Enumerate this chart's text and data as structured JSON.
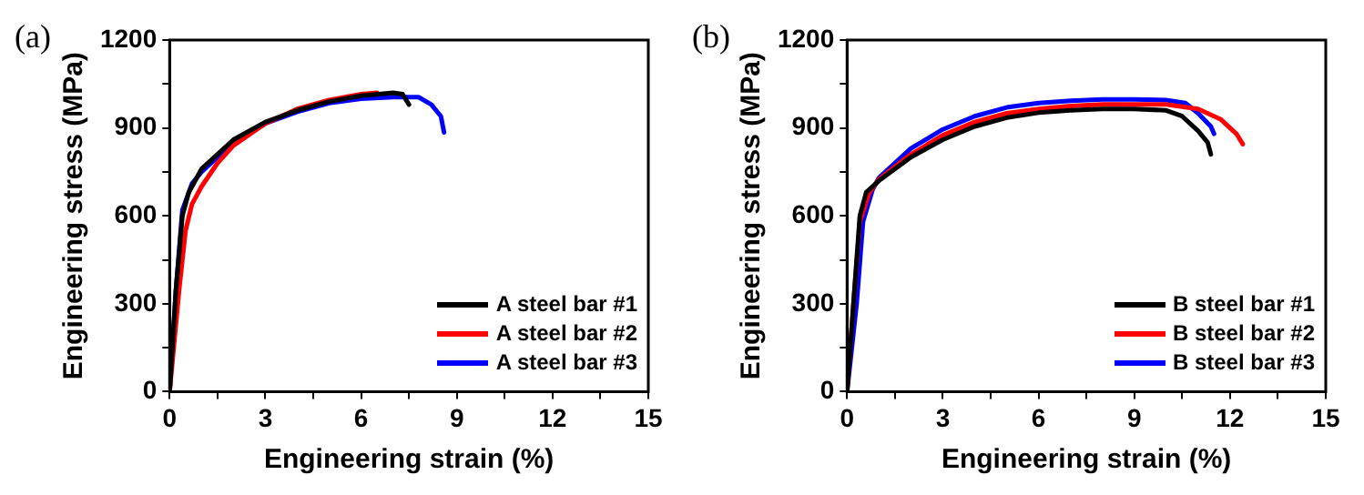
{
  "chart_data": [
    {
      "type": "line",
      "annotations": [
        "(a)"
      ],
      "xlabel": "Engineering strain (%)",
      "ylabel": "Engineering stress (MPa)",
      "xlim": [
        0,
        15
      ],
      "ylim": [
        0,
        1200
      ],
      "xticks": [
        0,
        {
          "value": 1.5,
          "label": null
        },
        3,
        {
          "value": 4.5,
          "label": null
        },
        6,
        {
          "value": 7.5,
          "label": null
        },
        9,
        {
          "value": 10.5,
          "label": null
        },
        12,
        {
          "value": 13.5,
          "label": null
        },
        15
      ],
      "yticks": [
        0,
        {
          "value": 150,
          "label": null
        },
        300,
        {
          "value": 450,
          "label": null
        },
        600,
        {
          "value": 750,
          "label": null
        },
        900,
        {
          "value": 1050,
          "label": null
        },
        1200
      ],
      "grid": false,
      "legend": "bottom right",
      "marker": "none",
      "line_style": "solid",
      "series": [
        {
          "name": "A steel bar #1",
          "color": "#000000",
          "x": [
            0,
            0.2,
            0.4,
            0.6,
            1,
            2,
            3,
            4,
            5,
            6,
            7,
            7.3,
            7.5
          ],
          "values": [
            0,
            350,
            600,
            680,
            760,
            860,
            920,
            960,
            990,
            1010,
            1020,
            1015,
            980
          ]
        },
        {
          "name": "A steel bar #2",
          "color": "#ff0000",
          "x": [
            0,
            0.3,
            0.5,
            0.7,
            1,
            1.5,
            2,
            3,
            4,
            5,
            6,
            6.5
          ],
          "values": [
            0,
            350,
            550,
            640,
            700,
            780,
            840,
            915,
            965,
            995,
            1015,
            1020
          ]
        },
        {
          "name": "A steel bar #3",
          "color": "#0000ff",
          "x": [
            0,
            0.2,
            0.4,
            0.7,
            1,
            2,
            3,
            4,
            5,
            6,
            7,
            7.8,
            8.2,
            8.5,
            8.6
          ],
          "values": [
            0,
            350,
            620,
            710,
            750,
            850,
            915,
            955,
            985,
            1000,
            1005,
            1005,
            980,
            940,
            885
          ]
        }
      ]
    },
    {
      "type": "line",
      "annotations": [
        "(b)"
      ],
      "xlabel": "Engineering strain (%)",
      "ylabel": "Engineering stress (MPa)",
      "xlim": [
        0,
        15
      ],
      "ylim": [
        0,
        1200
      ],
      "xticks": [
        0,
        {
          "value": 1.5,
          "label": null
        },
        3,
        {
          "value": 4.5,
          "label": null
        },
        6,
        {
          "value": 7.5,
          "label": null
        },
        9,
        {
          "value": 10.5,
          "label": null
        },
        12,
        {
          "value": 13.5,
          "label": null
        },
        15
      ],
      "yticks": [
        0,
        {
          "value": 150,
          "label": null
        },
        300,
        {
          "value": 450,
          "label": null
        },
        600,
        {
          "value": 750,
          "label": null
        },
        900,
        {
          "value": 1050,
          "label": null
        },
        1200
      ],
      "grid": false,
      "legend": "bottom right",
      "marker": "none",
      "line_style": "solid",
      "series": [
        {
          "name": "B steel bar #1",
          "color": "#000000",
          "x": [
            0,
            0.2,
            0.4,
            0.6,
            1,
            2,
            3,
            4,
            5,
            6,
            7,
            8,
            9,
            10,
            10.5,
            11,
            11.3,
            11.4
          ],
          "values": [
            0,
            300,
            600,
            680,
            720,
            800,
            860,
            905,
            935,
            952,
            960,
            965,
            965,
            960,
            940,
            890,
            850,
            810
          ]
        },
        {
          "name": "B steel bar #2",
          "color": "#ff0000",
          "x": [
            0,
            0.2,
            0.4,
            0.7,
            1,
            2,
            3,
            4,
            5,
            6,
            7,
            8,
            9,
            10,
            11,
            11.7,
            12.2,
            12.4
          ],
          "values": [
            0,
            300,
            580,
            680,
            725,
            810,
            875,
            920,
            950,
            965,
            975,
            980,
            980,
            980,
            965,
            930,
            880,
            845
          ]
        },
        {
          "name": "B steel bar #3",
          "color": "#0000ff",
          "x": [
            0,
            0.3,
            0.5,
            0.8,
            1,
            2,
            3,
            4,
            5,
            6,
            7,
            8,
            9,
            10,
            10.6,
            11,
            11.4,
            11.5
          ],
          "values": [
            0,
            300,
            580,
            690,
            730,
            830,
            895,
            940,
            970,
            985,
            993,
            997,
            997,
            995,
            985,
            950,
            905,
            880
          ]
        }
      ]
    }
  ]
}
